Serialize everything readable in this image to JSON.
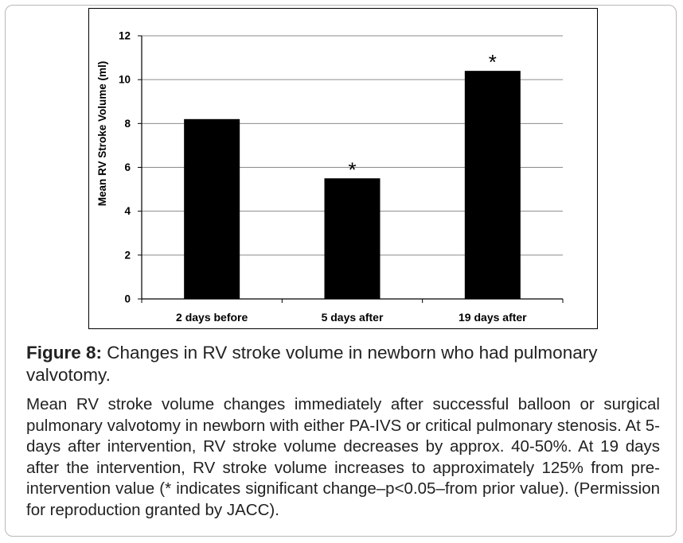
{
  "chart_data": {
    "type": "bar",
    "categories": [
      "2 days before",
      "5 days after",
      "19 days after"
    ],
    "values": [
      8.2,
      5.5,
      10.4
    ],
    "annotations": [
      "",
      "*",
      "*"
    ],
    "ylabel": "Mean RV Stroke Volume (ml)",
    "ylim": [
      0,
      12
    ],
    "yticks": [
      0,
      2,
      4,
      6,
      8,
      10,
      12
    ],
    "grid": true,
    "bar_color": "#000000"
  },
  "caption": {
    "label": "Figure 8:",
    "title": "Changes in RV stroke volume in newborn who had pulmonary valvotomy."
  },
  "description": "Mean RV stroke volume changes immediately after successful balloon or surgical pulmonary valvotomy in newborn with either PA-IVS or critical pulmonary stenosis. At 5-days after intervention, RV stroke volume decreases by approx. 40-50%. At 19 days after the intervention, RV stroke volume increases to approximately 125% from pre-intervention value (* indicates significant change–p<0.05–from prior value). (Permission for reproduction granted by JACC)."
}
